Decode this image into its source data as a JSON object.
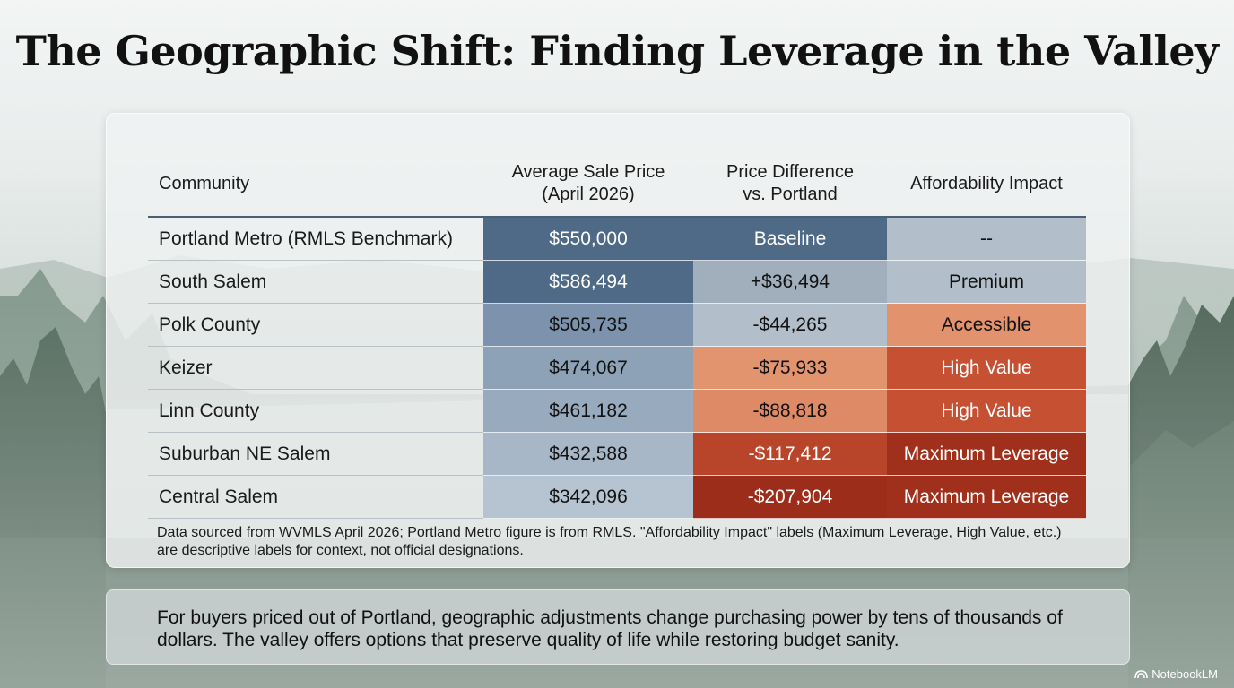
{
  "title": "The Geographic Shift: Finding Leverage in the Valley",
  "table": {
    "headers": [
      {
        "line1": "Community",
        "line2": ""
      },
      {
        "line1": "Average Sale Price",
        "line2": "(April 2026)"
      },
      {
        "line1": "Price Difference",
        "line2": "vs. Portland"
      },
      {
        "line1": "Affordability Impact",
        "line2": ""
      }
    ],
    "rows": [
      {
        "community": "Portland Metro (RMLS Benchmark)",
        "price": "$550,000",
        "difference": "Baseline",
        "impact": "--"
      },
      {
        "community": "South Salem",
        "price": "$586,494",
        "difference": "+$36,494",
        "impact": "Premium"
      },
      {
        "community": "Polk County",
        "price": "$505,735",
        "difference": "-$44,265",
        "impact": "Accessible"
      },
      {
        "community": "Keizer",
        "price": "$474,067",
        "difference": "-$75,933",
        "impact": "High Value"
      },
      {
        "community": "Linn County",
        "price": "$461,182",
        "difference": "-$88,818",
        "impact": "High Value"
      },
      {
        "community": "Suburban NE Salem",
        "price": "$432,588",
        "difference": "-$117,412",
        "impact": "Maximum Leverage"
      },
      {
        "community": "Central Salem",
        "price": "$342,096",
        "difference": "-$207,904",
        "impact": "Maximum Leverage"
      }
    ],
    "cell_colors": {
      "price": [
        "#4e6a87",
        "#4e6a87",
        "#7d93ad",
        "#8ea2b7",
        "#98aabd",
        "#a7b7c7",
        "#b6c3d0"
      ],
      "difference": [
        "#4e6a87",
        "#a1afbd",
        "#b2bfcb",
        "#e2946f",
        "#de8a66",
        "#b8452a",
        "#9c2d1a"
      ],
      "impact": [
        "#b2bfcb",
        "#b2bfcb",
        "#e2936e",
        "#c55032",
        "#c55032",
        "#a0301c",
        "#a0301c"
      ]
    },
    "text_colors": {
      "price": [
        "#ffffff",
        "#ffffff",
        "#111111",
        "#111111",
        "#111111",
        "#111111",
        "#111111"
      ],
      "difference": [
        "#ffffff",
        "#111111",
        "#111111",
        "#111111",
        "#111111",
        "#ffffff",
        "#ffffff"
      ],
      "impact": [
        "#111111",
        "#111111",
        "#111111",
        "#ffffff",
        "#ffffff",
        "#ffffff",
        "#ffffff"
      ]
    }
  },
  "footnote": "Data sourced from WVMLS April 2026; Portland Metro figure is from RMLS. \"Affordability Impact\" labels (Maximum Leverage, High Value, etc.) are descriptive labels for context, not official designations.",
  "summary": "For buyers priced out of Portland, geographic adjustments change purchasing power by tens of thousands of dollars. The valley offers options that preserve quality of life while restoring budget sanity.",
  "brand": "NotebookLM"
}
